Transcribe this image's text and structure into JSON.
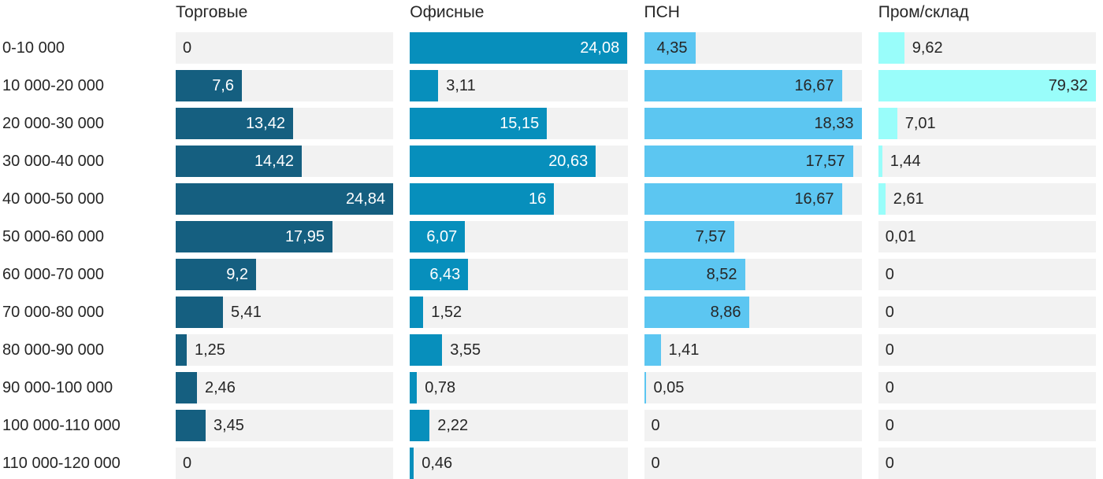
{
  "chart_data": {
    "type": "bar",
    "orientation": "horizontal",
    "title": "",
    "grid": false,
    "legend": false,
    "scaling": "each column scaled independently to its own max value",
    "track_color": "#f2f2f2",
    "text_color": "#262626",
    "decimal_separator": ",",
    "categories": [
      "0-10 000",
      "10 000-20 000",
      "20 000-30 000",
      "30 000-40 000",
      "40 000-50 000",
      "50 000-60 000",
      "60 000-70 000",
      "70 000-80 000",
      "80 000-90 000",
      "90 000-100 000",
      "100 000-110 000",
      "110 000-120 000"
    ],
    "series": [
      {
        "name": "Торговые",
        "color": "#155f80",
        "inside_label_color": "#ffffff",
        "values": [
          0,
          7.6,
          13.42,
          14.42,
          24.84,
          17.95,
          9.2,
          5.41,
          1.25,
          2.46,
          3.45,
          0
        ],
        "labels": [
          "0",
          "7,6",
          "13,42",
          "14,42",
          "24,84",
          "17,95",
          "9,2",
          "5,41",
          "1,25",
          "2,46",
          "3,45",
          "0"
        ]
      },
      {
        "name": "Офисные",
        "color": "#078fbc",
        "inside_label_color": "#ffffff",
        "values": [
          24.08,
          3.11,
          15.15,
          20.63,
          16,
          6.07,
          6.43,
          1.52,
          3.55,
          0.78,
          2.22,
          0.46
        ],
        "labels": [
          "24,08",
          "3,11",
          "15,15",
          "20,63",
          "16",
          "6,07",
          "6,43",
          "1,52",
          "3,55",
          "0,78",
          "2,22",
          "0,46"
        ]
      },
      {
        "name": "ПСН",
        "color": "#5cc6f1",
        "inside_label_color": "#262626",
        "values": [
          4.35,
          16.67,
          18.33,
          17.57,
          16.67,
          7.57,
          8.52,
          8.86,
          1.41,
          0.05,
          0,
          0
        ],
        "labels": [
          "4,35",
          "16,67",
          "18,33",
          "17,57",
          "16,67",
          "7,57",
          "8,52",
          "8,86",
          "1,41",
          "0,05",
          "0",
          "0"
        ]
      },
      {
        "name": "Пром/склад",
        "color": "#99fdfa",
        "inside_label_color": "#262626",
        "values": [
          9.62,
          79.32,
          7.01,
          1.44,
          2.61,
          0.01,
          0,
          0,
          0,
          0,
          0,
          0
        ],
        "labels": [
          "9,62",
          "79,32",
          "7,01",
          "1,44",
          "2,61",
          "0,01",
          "0",
          "0",
          "0",
          "0",
          "0",
          "0"
        ]
      }
    ]
  }
}
